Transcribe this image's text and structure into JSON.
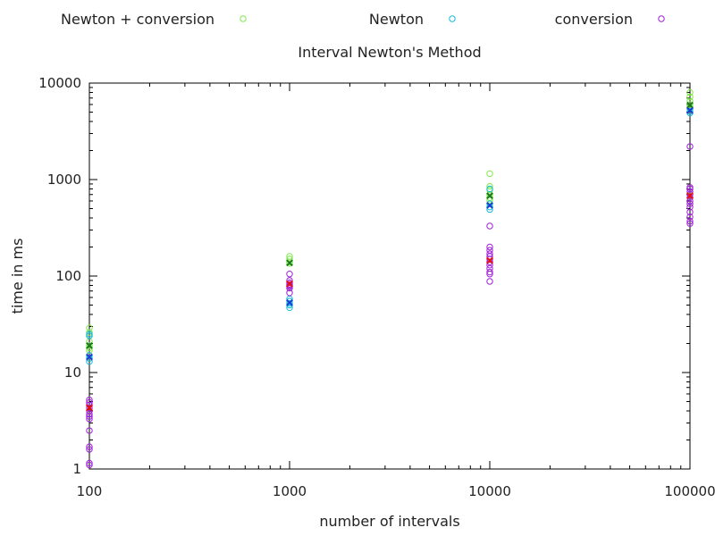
{
  "chart_data": {
    "type": "scatter",
    "title": "Interval Newton's Method",
    "xlabel": "number of intervals",
    "ylabel": "time in ms",
    "x_scale": "log",
    "y_scale": "log",
    "xlim": [
      100,
      100000
    ],
    "ylim": [
      1,
      10000
    ],
    "x_ticks": [
      100,
      1000,
      10000,
      100000
    ],
    "x_tick_labels": [
      "100",
      "1000",
      "10000",
      "100000"
    ],
    "y_ticks": [
      1,
      10,
      100,
      1000,
      10000
    ],
    "y_tick_labels": [
      "1",
      "10",
      "100",
      "1000",
      "10000"
    ],
    "grid": false,
    "legend": "top",
    "series": [
      {
        "name": "Newton + conversion",
        "color": "#7ee84a",
        "mean_color": "#1a7a1a",
        "points": [
          {
            "x": 100,
            "y": [
              29,
              26,
              24,
              21,
              19,
              18,
              17
            ]
          },
          {
            "x": 1000,
            "y": [
              160,
              150,
              140,
              135
            ]
          },
          {
            "x": 10000,
            "y": [
              1150,
              850,
              780,
              700,
              650,
              610
            ]
          },
          {
            "x": 100000,
            "y": [
              8000,
              7200,
              6500,
              6000,
              5600
            ]
          }
        ],
        "means": [
          {
            "x": 100,
            "y": 19
          },
          {
            "x": 1000,
            "y": 137
          },
          {
            "x": 10000,
            "y": 680
          },
          {
            "x": 100000,
            "y": 5900
          }
        ]
      },
      {
        "name": "Newton",
        "color": "#19b8d8",
        "mean_color": "#1a3fd0",
        "points": [
          {
            "x": 100,
            "y": [
              25,
              24,
              15,
              14,
              13
            ]
          },
          {
            "x": 1000,
            "y": [
              58,
              55,
              52,
              50,
              47
            ]
          },
          {
            "x": 10000,
            "y": [
              800,
              560,
              520,
              490
            ]
          },
          {
            "x": 100000,
            "y": [
              5400,
              5100,
              4900
            ]
          }
        ],
        "means": [
          {
            "x": 100,
            "y": 14.5
          },
          {
            "x": 1000,
            "y": 53
          },
          {
            "x": 10000,
            "y": 540
          },
          {
            "x": 100000,
            "y": 5200
          }
        ]
      },
      {
        "name": "conversion",
        "color": "#a020d8",
        "mean_color": "#e81010",
        "points": [
          {
            "x": 100,
            "y": [
              5.2,
              4.9,
              4.6,
              4.3,
              4.0,
              3.7,
              3.5,
              3.3,
              2.5,
              1.7,
              1.6,
              1.15,
              1.1
            ]
          },
          {
            "x": 1000,
            "y": [
              105,
              90,
              85,
              82,
              80,
              78,
              75,
              67
            ]
          },
          {
            "x": 10000,
            "y": [
              330,
              200,
              185,
              170,
              160,
              150,
              140,
              130,
              120,
              110,
              105,
              88
            ]
          },
          {
            "x": 100000,
            "y": [
              2200,
              830,
              800,
              750,
              700,
              650,
              600,
              560,
              520,
              460,
              410,
              370,
              350
            ]
          }
        ],
        "means": [
          {
            "x": 100,
            "y": 4.3
          },
          {
            "x": 1000,
            "y": 83
          },
          {
            "x": 10000,
            "y": 145
          },
          {
            "x": 100000,
            "y": 680
          }
        ]
      }
    ]
  }
}
